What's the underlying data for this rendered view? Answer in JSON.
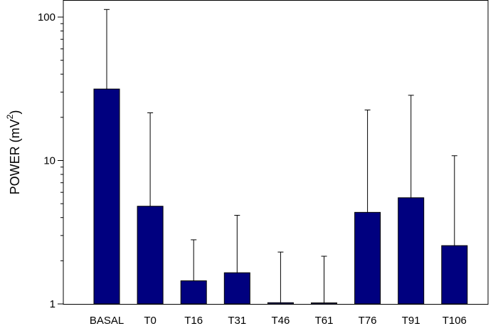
{
  "chart_data": {
    "type": "bar",
    "title": "",
    "xlabel": "",
    "ylabel": {
      "prefix": "POWER  (mV",
      "superscript": "2",
      "suffix": ")"
    },
    "yscale": "log",
    "ylim": [
      1,
      140
    ],
    "yticks": [
      {
        "value": 1,
        "label": "1"
      },
      {
        "value": 10,
        "label": "10"
      },
      {
        "value": 100,
        "label": "100"
      }
    ],
    "categories": [
      "BASAL",
      "T0",
      "T16",
      "T31",
      "T46",
      "T61",
      "T76",
      "T91",
      "T106"
    ],
    "values": [
      31.5,
      4.8,
      1.45,
      1.65,
      1.02,
      1.01,
      4.35,
      5.5,
      2.55
    ],
    "error_upper": [
      113,
      21.5,
      2.8,
      4.15,
      2.3,
      2.15,
      22.5,
      28.5,
      10.8
    ],
    "bar_color": "#00007f",
    "grid": false,
    "legend": "none"
  }
}
